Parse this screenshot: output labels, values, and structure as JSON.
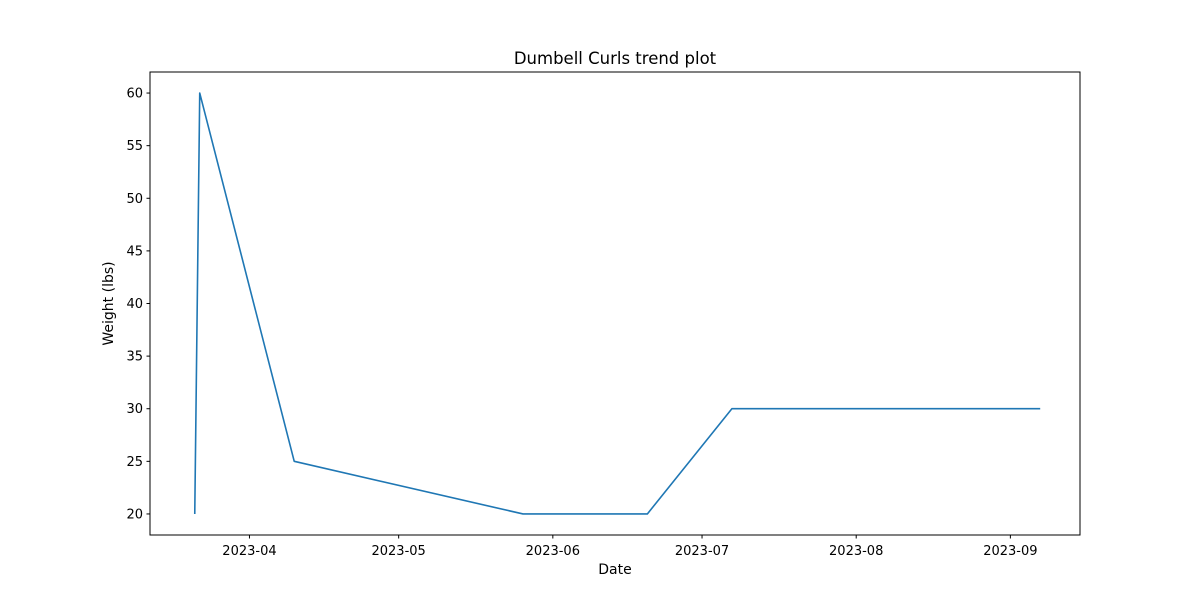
{
  "chart_data": {
    "type": "line",
    "title": "Dumbell Curls trend plot",
    "xlabel": "Date",
    "ylabel": "Weight (lbs)",
    "x_axis_type": "date",
    "x_ticks": [
      "2023-04-01",
      "2023-05-01",
      "2023-06-01",
      "2023-07-01",
      "2023-08-01",
      "2023-09-01"
    ],
    "x_tick_labels": [
      "2023-04",
      "2023-05",
      "2023-06",
      "2023-07",
      "2023-08",
      "2023-09"
    ],
    "y_ticks": [
      20,
      25,
      30,
      35,
      40,
      45,
      50,
      55,
      60
    ],
    "y_tick_labels": [
      "20",
      "25",
      "30",
      "35",
      "40",
      "45",
      "50",
      "55",
      "60"
    ],
    "xlim": [
      "2023-03-12",
      "2023-09-15"
    ],
    "ylim": [
      18,
      62
    ],
    "grid": false,
    "series": [
      {
        "color": "#1f77b4",
        "points": [
          {
            "x": "2023-03-21",
            "y": 20
          },
          {
            "x": "2023-03-22",
            "y": 60
          },
          {
            "x": "2023-04-10",
            "y": 25
          },
          {
            "x": "2023-05-26",
            "y": 20
          },
          {
            "x": "2023-06-20",
            "y": 20
          },
          {
            "x": "2023-07-07",
            "y": 30
          },
          {
            "x": "2023-09-07",
            "y": 30
          }
        ]
      }
    ]
  }
}
